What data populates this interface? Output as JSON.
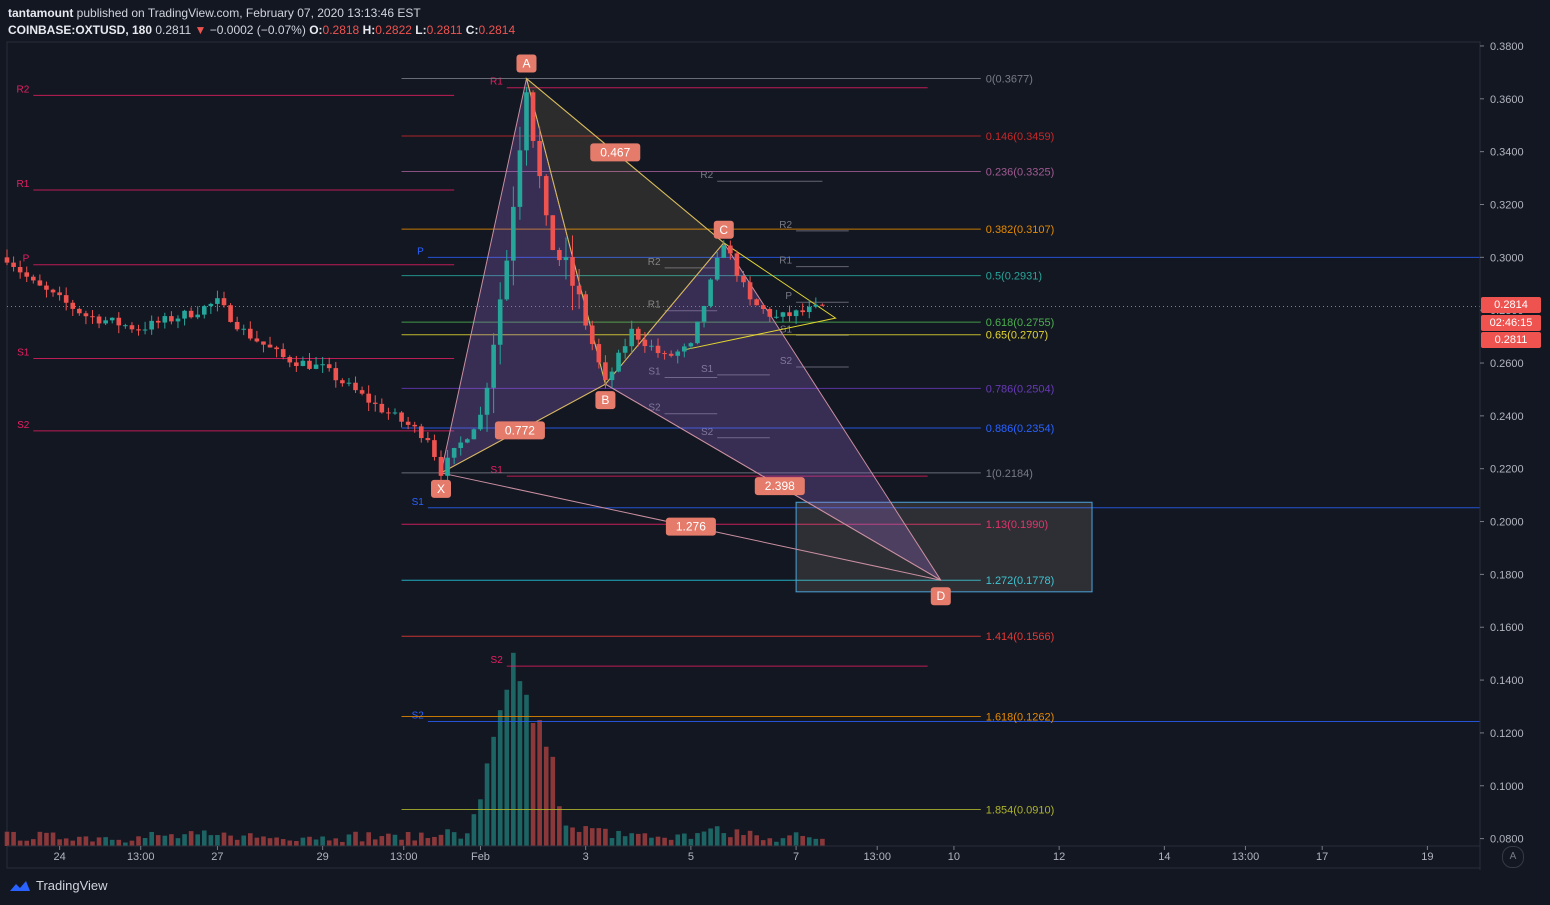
{
  "header": {
    "author": "tantamount",
    "published_text": "published on TradingView.com, February 07, 2020 13:13:46 EST",
    "symbol": "COINBASE:OXTUSD, 180",
    "last": "0.2811",
    "arrow": "▼",
    "change": "−0.0002 (−0.07%)",
    "o_label": "O:",
    "o": "0.2818",
    "h_label": "H:",
    "h": "0.2822",
    "l_label": "L:",
    "l": "0.2811",
    "c_label": "C:",
    "c": "0.2814"
  },
  "price_tags": {
    "close": "0.2814",
    "countdown": "02:46:15",
    "last": "0.2811"
  },
  "footer": {
    "brand": "TradingView",
    "auto": "A"
  },
  "colors": {
    "background": "#131722",
    "up": "#26a69a",
    "down": "#ef5350",
    "pattern_fill": "#9c6bd4",
    "target_box": "#4ba3d9"
  },
  "chart_data": {
    "type": "candlestick",
    "symbol": "COINBASE:OXTUSD",
    "interval": "180",
    "y_axis": {
      "ticks": [
        "0.3800",
        "0.3600",
        "0.3400",
        "0.3200",
        "0.3000",
        "0.2800",
        "0.2600",
        "0.2400",
        "0.2200",
        "0.2000",
        "0.1800",
        "0.1600",
        "0.1400",
        "0.1200",
        "0.1000",
        "0.0800"
      ],
      "ylim": [
        0.0772,
        0.3815
      ]
    },
    "x_axis": {
      "ticks": [
        {
          "label": "24",
          "date": "2020-01-24 00:00"
        },
        {
          "label": "13:00",
          "date": "2020-01-25 13:00"
        },
        {
          "label": "27",
          "date": "2020-01-27 00:00"
        },
        {
          "label": "29",
          "date": "2020-01-29 00:00"
        },
        {
          "label": "13:00",
          "date": "2020-01-30 13:00"
        },
        {
          "label": "Feb",
          "date": "2020-02-01 00:00"
        },
        {
          "label": "3",
          "date": "2020-02-03 00:00"
        },
        {
          "label": "5",
          "date": "2020-02-05 00:00"
        },
        {
          "label": "7",
          "date": "2020-02-07 00:00"
        },
        {
          "label": "13:00",
          "date": "2020-02-08 13:00"
        },
        {
          "label": "10",
          "date": "2020-02-10 00:00"
        },
        {
          "label": "12",
          "date": "2020-02-12 00:00"
        },
        {
          "label": "14",
          "date": "2020-02-14 00:00"
        },
        {
          "label": "13:00",
          "date": "2020-02-15 13:00"
        },
        {
          "label": "17",
          "date": "2020-02-17 00:00"
        },
        {
          "label": "19",
          "date": "2020-02-19 00:00"
        }
      ],
      "xlim": [
        "2020-01-23 00:00",
        "2020-02-20 00:00"
      ]
    },
    "price_key_points": [
      {
        "date": "2020-01-23 00:00",
        "price": 0.3
      },
      {
        "date": "2020-01-23 12:00",
        "price": 0.29
      },
      {
        "date": "2020-01-24 12:00",
        "price": 0.278
      },
      {
        "date": "2020-01-25 12:00",
        "price": 0.273
      },
      {
        "date": "2020-01-26 12:00",
        "price": 0.279
      },
      {
        "date": "2020-01-27 00:00",
        "price": 0.283
      },
      {
        "date": "2020-01-27 12:00",
        "price": 0.272
      },
      {
        "date": "2020-01-28 06:00",
        "price": 0.262
      },
      {
        "date": "2020-01-29 00:00",
        "price": 0.258
      },
      {
        "date": "2020-01-30 00:00",
        "price": 0.244
      },
      {
        "date": "2020-01-31 00:00",
        "price": 0.232
      },
      {
        "date": "2020-01-31 06:00",
        "price": 0.219
      },
      {
        "date": "2020-02-01 00:00",
        "price": 0.24
      },
      {
        "date": "2020-02-01 12:00",
        "price": 0.3
      },
      {
        "date": "2020-02-01 21:00",
        "price": 0.367
      },
      {
        "date": "2020-02-02 06:00",
        "price": 0.31
      },
      {
        "date": "2020-02-02 18:00",
        "price": 0.29
      },
      {
        "date": "2020-02-03 09:00",
        "price": 0.252
      },
      {
        "date": "2020-02-03 21:00",
        "price": 0.272
      },
      {
        "date": "2020-02-04 12:00",
        "price": 0.262
      },
      {
        "date": "2020-02-05 00:00",
        "price": 0.266
      },
      {
        "date": "2020-02-05 15:00",
        "price": 0.306
      },
      {
        "date": "2020-02-06 03:00",
        "price": 0.283
      },
      {
        "date": "2020-02-06 15:00",
        "price": 0.277
      },
      {
        "date": "2020-02-07 12:00",
        "price": 0.281
      }
    ],
    "volume_spike_date": "2020-02-01 18:00",
    "harmonic_pattern": {
      "points": [
        {
          "label": "X",
          "date": "2020-01-31 06:00",
          "price": 0.2184
        },
        {
          "label": "A",
          "date": "2020-02-01 21:00",
          "price": 0.3677
        },
        {
          "label": "B",
          "date": "2020-02-03 09:00",
          "price": 0.252
        },
        {
          "label": "C",
          "date": "2020-02-05 15:00",
          "price": 0.3055
        },
        {
          "label": "D",
          "date": "2020-02-09 18:00",
          "price": 0.1778
        }
      ],
      "ratios": [
        {
          "label": "0.467",
          "between": "A-C"
        },
        {
          "label": "0.772",
          "between": "X-B"
        },
        {
          "label": "2.398",
          "between": "B-D"
        },
        {
          "label": "1.276",
          "between": "X-D"
        }
      ],
      "target_box": {
        "date_from": "2020-02-07 00:00",
        "date_to": "2020-02-12 15:00",
        "price_from": 0.1734,
        "price_to": 0.2073
      }
    },
    "fib_levels": [
      {
        "label": "0(0.3677)",
        "value": 0.3677,
        "color": "#787b86"
      },
      {
        "label": "0.146(0.3459)",
        "value": 0.3459,
        "color": "#c62828"
      },
      {
        "label": "0.236(0.3325)",
        "value": 0.3325,
        "color": "#a05a92"
      },
      {
        "label": "0.382(0.3107)",
        "value": 0.3107,
        "color": "#e68a00"
      },
      {
        "label": "0.5(0.2931)",
        "value": 0.2931,
        "color": "#26a69a"
      },
      {
        "label": "0.618(0.2755)",
        "value": 0.2755,
        "color": "#4caf50"
      },
      {
        "label": "0.65(0.2707)",
        "value": 0.2707,
        "color": "#e2d62f"
      },
      {
        "label": "0.786(0.2504)",
        "value": 0.2504,
        "color": "#673ab7"
      },
      {
        "label": "0.886(0.2354)",
        "value": 0.2354,
        "color": "#2962ff"
      },
      {
        "label": "1(0.2184)",
        "value": 0.2184,
        "color": "#787b86"
      },
      {
        "label": "1.13(0.1990)",
        "value": 0.199,
        "color": "#e91e63"
      },
      {
        "label": "1.272(0.1778)",
        "value": 0.1778,
        "color": "#26c6da"
      },
      {
        "label": "1.414(0.1566)",
        "value": 0.1566,
        "color": "#e53935"
      },
      {
        "label": "1.618(0.1262)",
        "value": 0.1262,
        "color": "#e68a00"
      },
      {
        "label": "1.854(0.0910)",
        "value": 0.091,
        "color": "#afb42b"
      }
    ],
    "pivot_labels": [
      {
        "label": "R2",
        "price": 0.3613,
        "from": "2020-01-23 12:00",
        "to": "2020-01-31 12:00",
        "color": "#e91e63"
      },
      {
        "label": "R1",
        "price": 0.3255,
        "from": "2020-01-23 12:00",
        "to": "2020-01-31 12:00",
        "color": "#e91e63"
      },
      {
        "label": "P",
        "price": 0.2972,
        "from": "2020-01-23 12:00",
        "to": "2020-01-31 12:00",
        "color": "#e91e63"
      },
      {
        "label": "S1",
        "price": 0.2617,
        "from": "2020-01-23 12:00",
        "to": "2020-01-31 12:00",
        "color": "#e91e63"
      },
      {
        "label": "S2",
        "price": 0.2343,
        "from": "2020-01-23 12:00",
        "to": "2020-01-31 12:00",
        "color": "#e91e63"
      },
      {
        "label": "R1",
        "price": 0.3642,
        "from": "2020-02-01 12:00",
        "to": "2020-02-09 12:00",
        "color": "#e91e63"
      },
      {
        "label": "S1",
        "price": 0.2172,
        "from": "2020-02-01 12:00",
        "to": "2020-02-09 12:00",
        "color": "#e91e63"
      },
      {
        "label": "S2",
        "price": 0.1453,
        "from": "2020-02-01 12:00",
        "to": "2020-02-09 12:00",
        "color": "#e91e63"
      },
      {
        "label": "P",
        "price": 0.3,
        "from": "2020-01-31 00:00",
        "to": "2020-02-20 00:00",
        "color": "#2962ff"
      },
      {
        "label": "S1",
        "price": 0.2052,
        "from": "2020-01-31 00:00",
        "to": "2020-02-20 00:00",
        "color": "#2962ff"
      },
      {
        "label": "S2",
        "price": 0.1243,
        "from": "2020-01-31 00:00",
        "to": "2020-02-20 00:00",
        "color": "#2962ff"
      },
      {
        "label": "R2",
        "price": 0.3288,
        "from": "2020-02-05 12:00",
        "to": "2020-02-07 12:00",
        "color": "#787b86"
      },
      {
        "label": "R2",
        "price": 0.296,
        "from": "2020-02-04 12:00",
        "to": "2020-02-05 12:00",
        "color": "#787b86"
      },
      {
        "label": "R1",
        "price": 0.2798,
        "from": "2020-02-04 12:00",
        "to": "2020-02-05 12:00",
        "color": "#787b86"
      },
      {
        "label": "S1",
        "price": 0.2545,
        "from": "2020-02-04 12:00",
        "to": "2020-02-05 12:00",
        "color": "#787b86"
      },
      {
        "label": "S2",
        "price": 0.2408,
        "from": "2020-02-04 12:00",
        "to": "2020-02-05 12:00",
        "color": "#787b86"
      },
      {
        "label": "S1",
        "price": 0.2555,
        "from": "2020-02-05 12:00",
        "to": "2020-02-06 12:00",
        "color": "#787b86"
      },
      {
        "label": "S2",
        "price": 0.2317,
        "from": "2020-02-05 12:00",
        "to": "2020-02-06 12:00",
        "color": "#787b86"
      },
      {
        "label": "R2",
        "price": 0.31,
        "from": "2020-02-07 00:00",
        "to": "2020-02-08 00:00",
        "color": "#787b86"
      },
      {
        "label": "R1",
        "price": 0.2965,
        "from": "2020-02-07 00:00",
        "to": "2020-02-08 00:00",
        "color": "#787b86"
      },
      {
        "label": "P",
        "price": 0.283,
        "from": "2020-02-07 00:00",
        "to": "2020-02-08 00:00",
        "color": "#787b86"
      },
      {
        "label": "S1",
        "price": 0.2705,
        "from": "2020-02-07 00:00",
        "to": "2020-02-08 00:00",
        "color": "#787b86"
      },
      {
        "label": "S2",
        "price": 0.2585,
        "from": "2020-02-07 00:00",
        "to": "2020-02-08 00:00",
        "color": "#787b86"
      }
    ]
  }
}
